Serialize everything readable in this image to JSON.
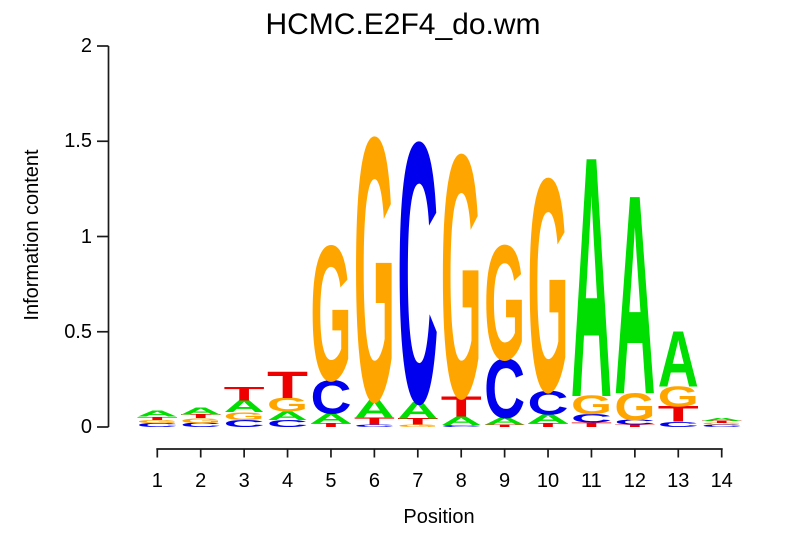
{
  "chart_data": {
    "type": "sequence-logo",
    "title": "HCMC.E2F4_do.wm",
    "xlabel": "Position",
    "ylabel": "Information content",
    "ylim": [
      0,
      2
    ],
    "yticks": [
      0,
      0.5,
      1,
      1.5,
      2
    ],
    "ytick_labels": [
      "0",
      "0.5",
      "1",
      "1.5",
      "2"
    ],
    "positions": [
      "1",
      "2",
      "3",
      "4",
      "5",
      "6",
      "7",
      "8",
      "9",
      "10",
      "11",
      "12",
      "13",
      "14"
    ],
    "base_colors": {
      "A": "#00DD00",
      "C": "#0000EE",
      "G": "#FFA500",
      "T": "#EE0000"
    },
    "stacks": [
      [
        {
          "base": "C",
          "bits": 0.02
        },
        {
          "base": "G",
          "bits": 0.018
        },
        {
          "base": "T",
          "bits": 0.016
        },
        {
          "base": "A",
          "bits": 0.03
        }
      ],
      [
        {
          "base": "C",
          "bits": 0.022
        },
        {
          "base": "G",
          "bits": 0.024
        },
        {
          "base": "T",
          "bits": 0.02
        },
        {
          "base": "A",
          "bits": 0.036
        }
      ],
      [
        {
          "base": "C",
          "bits": 0.038
        },
        {
          "base": "G",
          "bits": 0.04
        },
        {
          "base": "A",
          "bits": 0.062
        },
        {
          "base": "T",
          "bits": 0.07
        }
      ],
      [
        {
          "base": "C",
          "bits": 0.037
        },
        {
          "base": "A",
          "bits": 0.044
        },
        {
          "base": "G",
          "bits": 0.072
        },
        {
          "base": "T",
          "bits": 0.138
        }
      ],
      [
        {
          "base": "T",
          "bits": 0.021
        },
        {
          "base": "A",
          "bits": 0.051
        },
        {
          "base": "C",
          "bits": 0.175
        },
        {
          "base": "G",
          "bits": 0.7
        }
      ],
      [
        {
          "base": "C",
          "bits": 0.013
        },
        {
          "base": "T",
          "bits": 0.035
        },
        {
          "base": "A",
          "bits": 0.096
        },
        {
          "base": "G",
          "bits": 1.365
        }
      ],
      [
        {
          "base": "G",
          "bits": 0.012
        },
        {
          "base": "T",
          "bits": 0.033
        },
        {
          "base": "A",
          "bits": 0.088
        },
        {
          "base": "C",
          "bits": 1.35
        }
      ],
      [
        {
          "base": "C",
          "bits": 0.011
        },
        {
          "base": "A",
          "bits": 0.044
        },
        {
          "base": "T",
          "bits": 0.105
        },
        {
          "base": "G",
          "bits": 1.26
        }
      ],
      [
        {
          "base": "T",
          "bits": 0.014
        },
        {
          "base": "A",
          "bits": 0.035
        },
        {
          "base": "C",
          "bits": 0.306
        },
        {
          "base": "G",
          "bits": 0.595
        }
      ],
      [
        {
          "base": "T",
          "bits": 0.02
        },
        {
          "base": "A",
          "bits": 0.046
        },
        {
          "base": "C",
          "bits": 0.125
        },
        {
          "base": "G",
          "bits": 1.105
        }
      ],
      [
        {
          "base": "T",
          "bits": 0.023
        },
        {
          "base": "C",
          "bits": 0.044
        },
        {
          "base": "G",
          "bits": 0.096
        },
        {
          "base": "A",
          "bits": 1.246
        }
      ],
      [
        {
          "base": "T",
          "bits": 0.012
        },
        {
          "base": "C",
          "bits": 0.026
        },
        {
          "base": "G",
          "bits": 0.14
        },
        {
          "base": "A",
          "bits": 1.032
        }
      ],
      [
        {
          "base": "C",
          "bits": 0.028
        },
        {
          "base": "T",
          "bits": 0.079
        },
        {
          "base": "G",
          "bits": 0.105
        },
        {
          "base": "A",
          "bits": 0.289
        }
      ],
      [
        {
          "base": "C",
          "bits": 0.012
        },
        {
          "base": "G",
          "bits": 0.008
        },
        {
          "base": "T",
          "bits": 0.012
        },
        {
          "base": "A",
          "bits": 0.018
        }
      ]
    ]
  }
}
